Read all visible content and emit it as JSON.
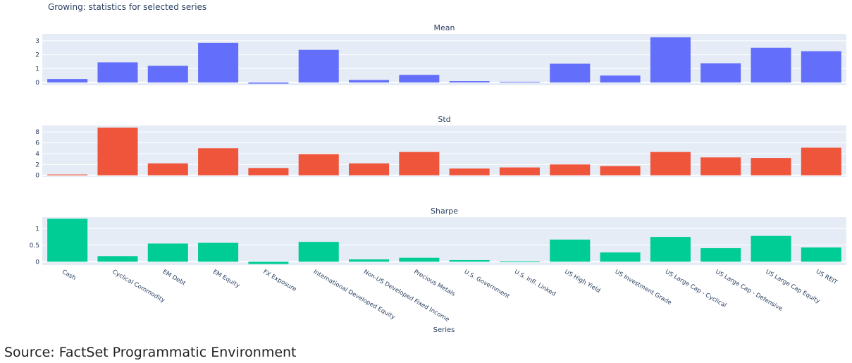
{
  "chart_data": {
    "type": "bar",
    "title": "Growing: statistics for selected series",
    "xlabel": "Series",
    "categories": [
      "Cash",
      "Cyclical Commodity",
      "EM Debt",
      "EM Equity",
      "FX Exposure",
      "International Developed Equity",
      "Non-US Developed Fixed Income",
      "Precious Metals",
      "U.S. Government",
      "U.S. Infl. Linked",
      "US High Yield",
      "US Investment Grade",
      "US Large Cap - Cyclical",
      "US Large Cap - Defensive",
      "US Large Cap Equity",
      "US REIT"
    ],
    "subplots": [
      {
        "name": "Mean",
        "color": "#636efa",
        "ylim": [
          -0.2,
          3.5
        ],
        "yticks": [
          0,
          1,
          2,
          3
        ],
        "ytick_labels": [
          "0",
          "1",
          "2",
          "3"
        ],
        "values": [
          0.25,
          1.45,
          1.2,
          2.85,
          -0.08,
          2.35,
          0.18,
          0.55,
          0.1,
          0.05,
          1.35,
          0.5,
          3.25,
          1.38,
          2.5,
          2.25
        ]
      },
      {
        "name": "Std",
        "color": "#ef553b",
        "ylim": [
          -0.3,
          9.2
        ],
        "yticks": [
          0,
          2,
          4,
          6,
          8
        ],
        "ytick_labels": [
          "0",
          "2",
          "4",
          "6",
          "8"
        ],
        "values": [
          0.15,
          8.8,
          2.2,
          5.0,
          1.35,
          3.9,
          2.2,
          4.3,
          1.25,
          1.45,
          2.0,
          1.7,
          4.3,
          3.3,
          3.2,
          5.1
        ]
      },
      {
        "name": "Sharpe",
        "color": "#00cc96",
        "ylim": [
          -0.1,
          1.35
        ],
        "yticks": [
          0,
          0.5,
          1
        ],
        "ytick_labels": [
          "0",
          "0.5",
          "1"
        ],
        "values": [
          1.3,
          0.17,
          0.55,
          0.57,
          -0.07,
          0.6,
          0.07,
          0.12,
          0.05,
          0.01,
          0.67,
          0.28,
          0.75,
          0.41,
          0.78,
          0.43
        ]
      }
    ],
    "grid": true
  },
  "source": "Source: FactSet Programmatic Environment"
}
